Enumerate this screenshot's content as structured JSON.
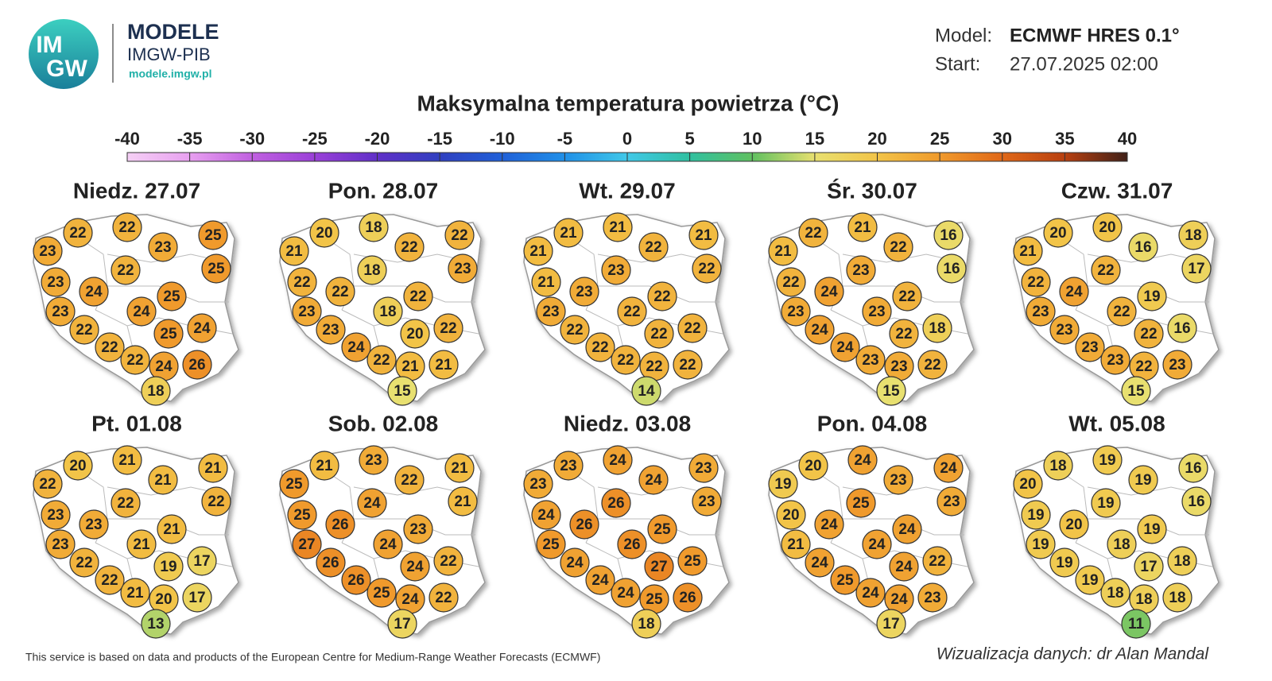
{
  "header": {
    "logo_top": "IM",
    "logo_bottom": "GW",
    "brand": "MODELE",
    "org": "IMGW-PIB",
    "url": "modele.imgw.pl"
  },
  "model": {
    "model_label": "Model:",
    "model_value": "ECMWF HRES 0.1°",
    "start_label": "Start:",
    "start_value": "27.07.2025 02:00"
  },
  "chart_data": {
    "type": "map",
    "title": "Maksymalna temperatura powietrza (°C)",
    "colorbar": {
      "ticks": [
        -40,
        -35,
        -30,
        -25,
        -20,
        -15,
        -10,
        -5,
        0,
        5,
        10,
        15,
        20,
        25,
        30,
        35,
        40
      ],
      "colors": [
        "#f5d0f5",
        "#e8a0f0",
        "#c060e0",
        "#9a40d8",
        "#6030c8",
        "#3040c0",
        "#2060d8",
        "#2090e8",
        "#40c8e8",
        "#30c0a0",
        "#60c060",
        "#e8e070",
        "#f2c448",
        "#f09a2c",
        "#e06818",
        "#b84010",
        "#402018"
      ]
    },
    "panels": [
      {
        "title": "Niedz. 27.07",
        "values": [
          23,
          22,
          22,
          23,
          25,
          25,
          23,
          22,
          24,
          25,
          23,
          24,
          22,
          25,
          24,
          22,
          22,
          24,
          26,
          18
        ]
      },
      {
        "title": "Pon. 28.07",
        "values": [
          21,
          20,
          18,
          22,
          22,
          23,
          22,
          18,
          22,
          22,
          23,
          18,
          23,
          20,
          22,
          24,
          22,
          21,
          21,
          15
        ]
      },
      {
        "title": "Wt. 29.07",
        "values": [
          21,
          21,
          21,
          22,
          21,
          22,
          21,
          23,
          23,
          22,
          23,
          22,
          22,
          22,
          22,
          22,
          22,
          22,
          22,
          14
        ]
      },
      {
        "title": "Śr. 30.07",
        "values": [
          21,
          22,
          21,
          22,
          16,
          16,
          22,
          23,
          24,
          22,
          23,
          23,
          24,
          22,
          18,
          24,
          23,
          23,
          22,
          15
        ]
      },
      {
        "title": "Czw. 31.07",
        "values": [
          21,
          20,
          20,
          16,
          18,
          17,
          22,
          22,
          24,
          19,
          23,
          22,
          23,
          22,
          16,
          23,
          23,
          22,
          23,
          15
        ]
      },
      {
        "title": "Pt. 01.08",
        "values": [
          22,
          20,
          21,
          21,
          21,
          22,
          23,
          22,
          23,
          21,
          23,
          21,
          22,
          19,
          17,
          22,
          21,
          20,
          17,
          13
        ]
      },
      {
        "title": "Sob. 02.08",
        "values": [
          25,
          21,
          23,
          22,
          21,
          21,
          25,
          24,
          26,
          23,
          27,
          24,
          26,
          24,
          22,
          26,
          25,
          24,
          22,
          17
        ]
      },
      {
        "title": "Niedz. 03.08",
        "values": [
          23,
          23,
          24,
          24,
          23,
          23,
          24,
          26,
          26,
          25,
          25,
          26,
          24,
          27,
          25,
          24,
          24,
          25,
          26,
          18
        ]
      },
      {
        "title": "Pon. 04.08",
        "values": [
          19,
          20,
          24,
          23,
          24,
          23,
          20,
          25,
          24,
          24,
          21,
          24,
          24,
          24,
          22,
          25,
          24,
          24,
          23,
          17
        ]
      },
      {
        "title": "Wt. 05.08",
        "values": [
          20,
          18,
          19,
          19,
          16,
          16,
          19,
          19,
          20,
          19,
          19,
          18,
          19,
          17,
          18,
          19,
          18,
          18,
          18,
          11
        ]
      }
    ]
  },
  "footer": {
    "source": "This service is based on data and products of the European Centre for Medium-Range Weather Forecasts (ECMWF)",
    "credit": "Wizualizacja danych: dr Alan Mandal"
  }
}
